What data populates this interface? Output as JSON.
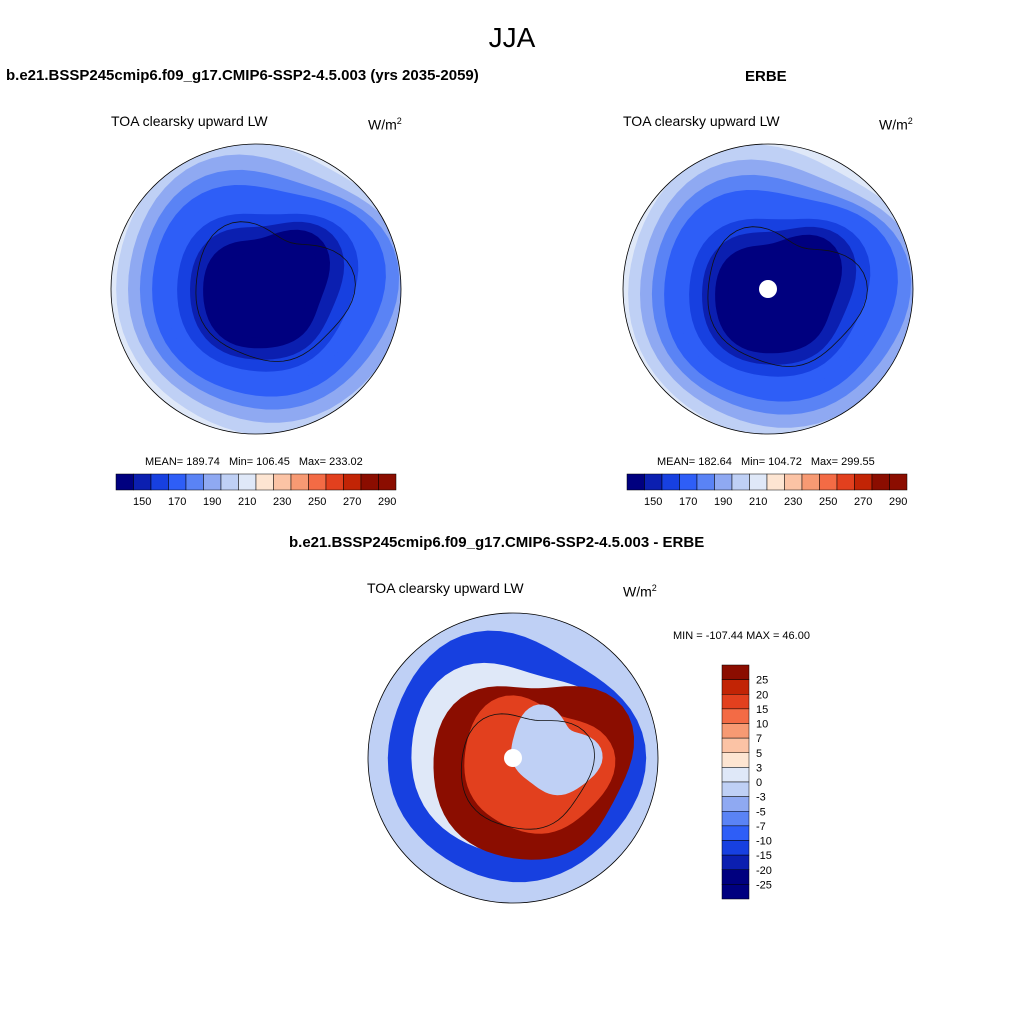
{
  "figure_title": "JJA",
  "colors": {
    "seq": [
      "#00007f",
      "#0b1fb0",
      "#1740e0",
      "#2e5ef7",
      "#5a83f5",
      "#8fa9f2",
      "#bfd0f5",
      "#dfe8f8",
      "#fde5d2",
      "#fbc3a5",
      "#f79a73",
      "#f36b45",
      "#e2401e",
      "#c22405",
      "#8b0d00"
    ],
    "div": [
      "#00007f",
      "#0b1fb0",
      "#1740e0",
      "#2e5ef7",
      "#5a83f5",
      "#8fa9f2",
      "#bfd0f5",
      "#dfe8f8",
      "#fde5d2",
      "#fbc3a5",
      "#f79a73",
      "#f36b45",
      "#e2401e",
      "#c22405",
      "#8b0d00"
    ],
    "coast": "#111111",
    "missing": "#ffffff"
  },
  "chart_data": [
    {
      "type": "heatmap",
      "title": "b.e21.BSSP245cmip6.f09_g17.CMIP6-SSP2-4.5.003 (yrs 2035-2059)",
      "subtitle": "TOA clearsky upward LW",
      "units": "W/m",
      "units_sup": "2",
      "projection": "south polar stereographic",
      "stats": {
        "mean": "MEAN= 189.74",
        "min": "Min= 106.45",
        "max": "Max= 233.02"
      },
      "colorbar_labels": [
        "150",
        "170",
        "190",
        "210",
        "230",
        "250",
        "270",
        "290"
      ],
      "colorbar_levels": [
        140,
        150,
        160,
        170,
        180,
        190,
        200,
        210,
        220,
        230,
        240,
        250,
        260,
        270,
        280,
        290
      ],
      "field": {
        "interior": 140,
        "mid": 190,
        "edge": 230
      }
    },
    {
      "type": "heatmap",
      "title": "ERBE",
      "subtitle": "TOA clearsky upward LW",
      "units": "W/m",
      "units_sup": "2",
      "projection": "south polar stereographic",
      "stats": {
        "mean": "MEAN= 182.64",
        "min": "Min= 104.72",
        "max": "Max= 299.55"
      },
      "colorbar_labels": [
        "150",
        "170",
        "190",
        "210",
        "230",
        "250",
        "270",
        "290"
      ],
      "colorbar_levels": [
        140,
        150,
        160,
        170,
        180,
        190,
        200,
        210,
        220,
        230,
        240,
        250,
        260,
        270,
        280,
        290
      ],
      "field": {
        "interior": 140,
        "mid": 170,
        "edge": 232,
        "polar_hole": true
      }
    },
    {
      "type": "heatmap",
      "title": "b.e21.BSSP245cmip6.f09_g17.CMIP6-SSP2-4.5.003 - ERBE",
      "subtitle": "TOA clearsky upward LW",
      "units": "W/m",
      "units_sup": "2",
      "projection": "south polar stereographic",
      "stats": {
        "minmax": "MIN = -107.44 MAX =  46.00"
      },
      "colorbar_labels": [
        "25",
        "20",
        "15",
        "10",
        "7",
        "5",
        "3",
        "0",
        "-3",
        "-5",
        "-7",
        "-10",
        "-15",
        "-20",
        "-25"
      ],
      "field": {
        "ring": -15,
        "continent": 25,
        "plateau": -3,
        "polar_hole": true
      }
    }
  ]
}
